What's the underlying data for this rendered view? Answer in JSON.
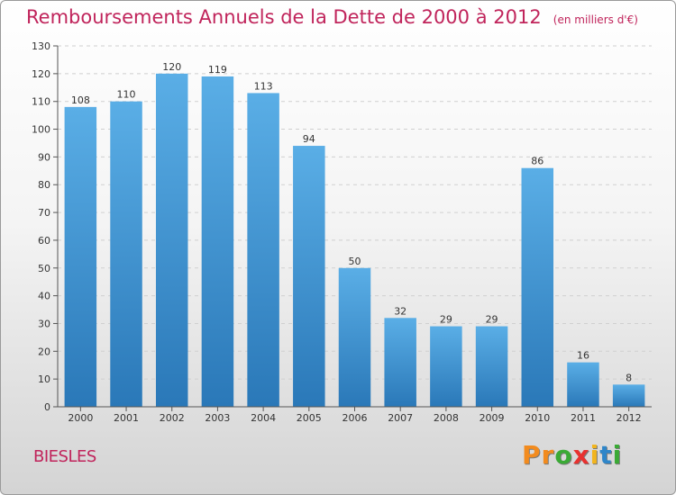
{
  "title": "Remboursements Annuels de la Dette de 2000 à 2012",
  "unit": "(en milliers d'€)",
  "commune": "BIESLES",
  "logo": {
    "text": "Proxiti",
    "letters": [
      "P",
      "r",
      "o",
      "x",
      "i",
      "t",
      "i"
    ],
    "colors": [
      "#f28b1e",
      "#f28b1e",
      "#3aaa35",
      "#e8312f",
      "#f2b51e",
      "#2f86c9",
      "#3aaa35"
    ]
  },
  "colors": {
    "bar_top": "#5aaee6",
    "bar_bottom": "#2a78b8",
    "title": "#c0245b",
    "grid": "#d0d0d0"
  },
  "chart_data": {
    "type": "bar",
    "title": "Remboursements Annuels de la Dette de 2000 à 2012",
    "categories": [
      "2000",
      "2001",
      "2002",
      "2003",
      "2004",
      "2005",
      "2006",
      "2007",
      "2008",
      "2009",
      "2010",
      "2011",
      "2012"
    ],
    "values": [
      108,
      110,
      120,
      119,
      113,
      94,
      50,
      32,
      29,
      29,
      86,
      16,
      8
    ],
    "ylim": [
      0,
      130
    ],
    "yticks": [
      0,
      10,
      20,
      30,
      40,
      50,
      60,
      70,
      80,
      90,
      100,
      110,
      120,
      130
    ],
    "grid": true,
    "xlabel": "",
    "ylabel": ""
  }
}
